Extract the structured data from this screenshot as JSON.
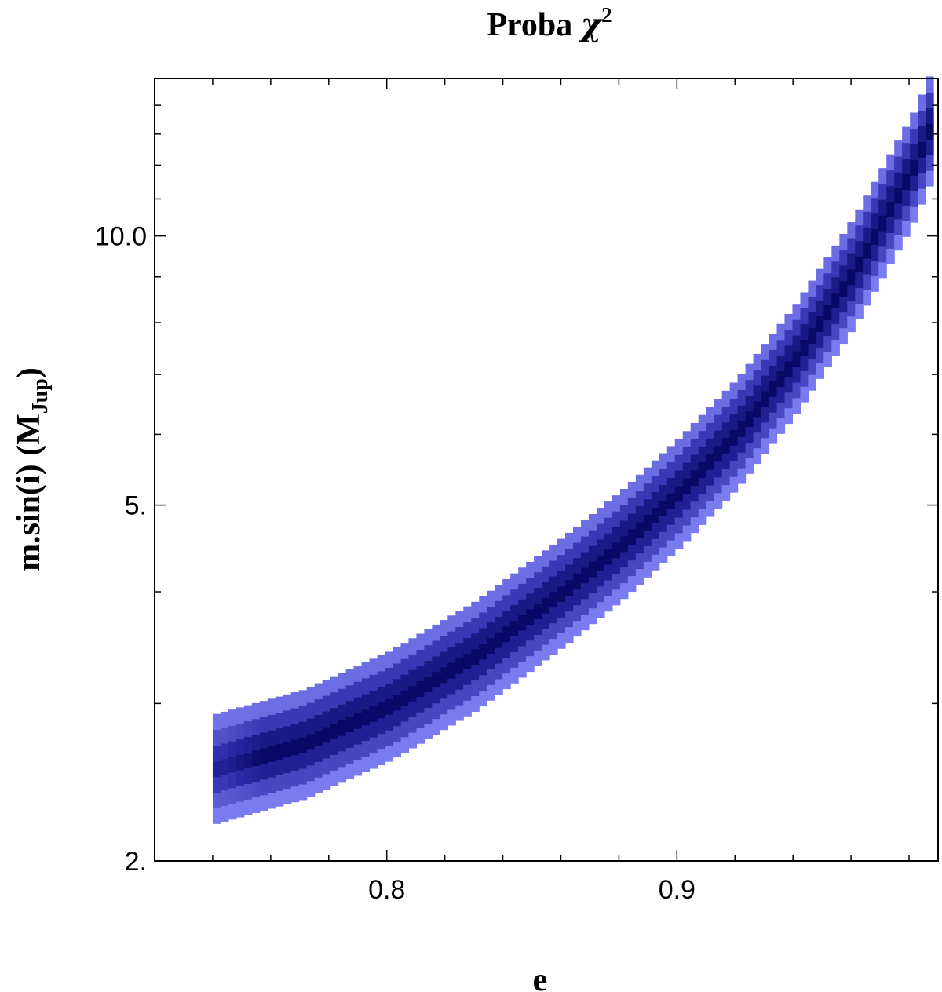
{
  "chart_data": {
    "type": "heatmap",
    "title": "Proba χ2",
    "title_parts": {
      "text": "Proba ",
      "symbol": "χ",
      "sup": "2"
    },
    "xlabel": "e",
    "ylabel": "m.sin(i) (MJup)",
    "ylabel_parts": {
      "main": "m.sin(i) (M",
      "sub": "Jup",
      "close": ")"
    },
    "x_scale": "linear",
    "y_scale": "log",
    "xlim": [
      0.72,
      0.99
    ],
    "ylim": [
      2.0,
      15.0
    ],
    "x_ticks": [
      {
        "value": 0.8,
        "label": "0.8"
      },
      {
        "value": 0.9,
        "label": "0.9"
      }
    ],
    "y_ticks": [
      {
        "value": 2.0,
        "label": "2."
      },
      {
        "value": 5.0,
        "label": "5."
      },
      {
        "value": 10.0,
        "label": "10.0"
      }
    ],
    "colors": {
      "low": "#7b7bf0",
      "mid": "#2a2aa8",
      "high": "#060660",
      "frame": "#000000"
    },
    "ridge": {
      "description_points": [
        {
          "e": 0.74,
          "m": 2.5
        },
        {
          "e": 0.77,
          "m": 2.66
        },
        {
          "e": 0.8,
          "m": 2.94
        },
        {
          "e": 0.83,
          "m": 3.35
        },
        {
          "e": 0.86,
          "m": 3.95
        },
        {
          "e": 0.88,
          "m": 4.45
        },
        {
          "e": 0.9,
          "m": 5.1
        },
        {
          "e": 0.92,
          "m": 5.95
        },
        {
          "e": 0.94,
          "m": 7.2
        },
        {
          "e": 0.96,
          "m": 9.0
        },
        {
          "e": 0.98,
          "m": 11.7
        },
        {
          "e": 0.987,
          "m": 13.2
        }
      ],
      "e_start": 0.74,
      "e_end": 0.987,
      "e_step": 0.0027,
      "m_step": 0.0175,
      "m_half_width": 0.055,
      "e_half_width": 0.026
    }
  }
}
